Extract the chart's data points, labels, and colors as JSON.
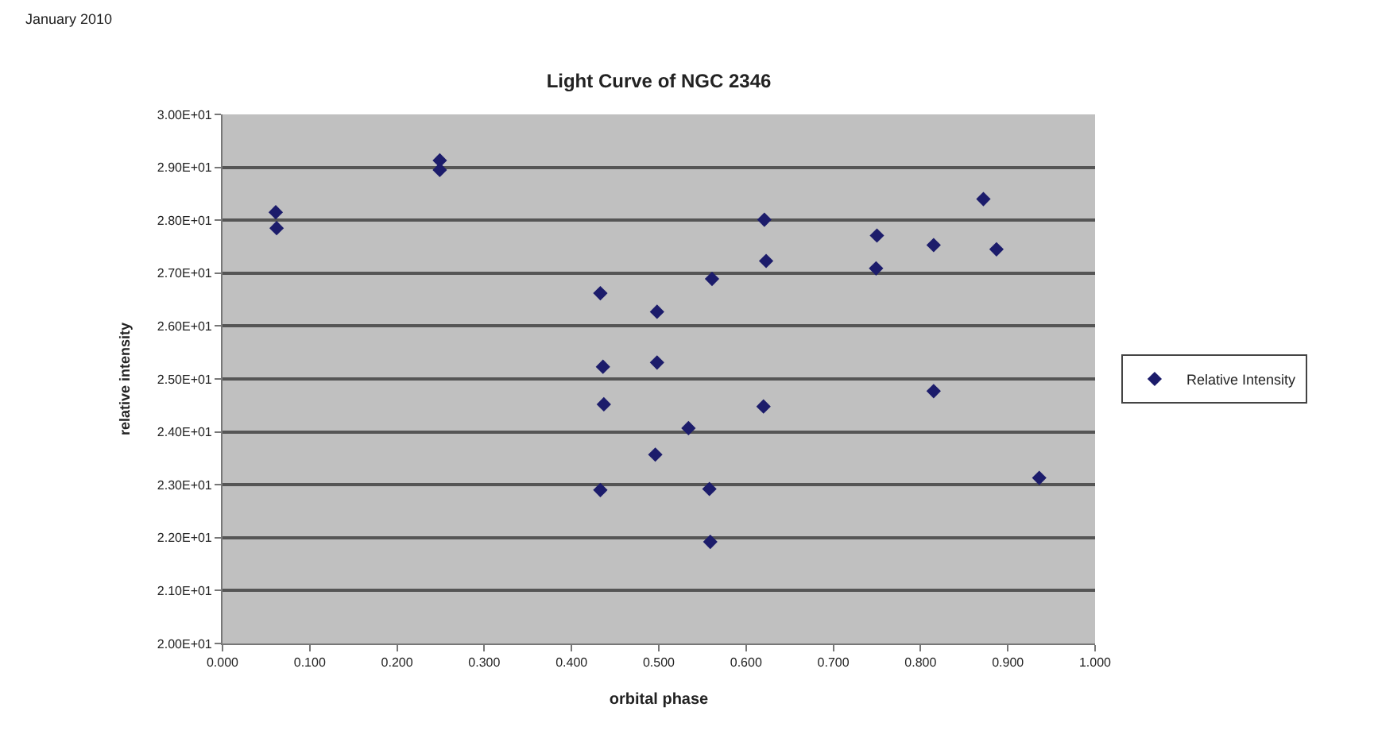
{
  "chart_data": {
    "type": "scatter",
    "title": "Light Curve of NGC 2346",
    "xlabel": "orbital phase",
    "ylabel": "relative intensity",
    "annotations": [
      "January 2010"
    ],
    "x": [
      0.061,
      0.062,
      0.249,
      0.249,
      0.433,
      0.498,
      0.436,
      0.498,
      0.437,
      0.496,
      0.433,
      0.621,
      0.872,
      0.75,
      0.815,
      0.887,
      0.623,
      0.749,
      0.561,
      0.815,
      0.62,
      0.534,
      0.936,
      0.558,
      0.559
    ],
    "series": [
      {
        "name": "Relative Intensity",
        "color": "#1c1c6b",
        "values": [
          28.15,
          27.85,
          29.13,
          28.95,
          26.62,
          26.27,
          25.23,
          25.31,
          24.52,
          23.57,
          22.9,
          28.01,
          28.4,
          27.71,
          27.53,
          27.45,
          27.23,
          27.09,
          26.89,
          24.77,
          24.48,
          24.07,
          23.13,
          22.92,
          21.92
        ]
      }
    ],
    "xlim": [
      0,
      1
    ],
    "xticks": [
      {
        "value": 0,
        "label": "0.000"
      },
      {
        "value": 0.1,
        "label": "0.100"
      },
      {
        "value": 0.2,
        "label": "0.200"
      },
      {
        "value": 0.3,
        "label": "0.300"
      },
      {
        "value": 0.4,
        "label": "0.400"
      },
      {
        "value": 0.5,
        "label": "0.500"
      },
      {
        "value": 0.6,
        "label": "0.600"
      },
      {
        "value": 0.7,
        "label": "0.700"
      },
      {
        "value": 0.8,
        "label": "0.800"
      },
      {
        "value": 0.9,
        "label": "0.900"
      },
      {
        "value": 1,
        "label": "1.000"
      }
    ],
    "ylim": [
      20,
      30
    ],
    "yticks": [
      {
        "value": 20,
        "label": "2.00E+01"
      },
      {
        "value": 21,
        "label": "2.10E+01"
      },
      {
        "value": 22,
        "label": "2.20E+01"
      },
      {
        "value": 23,
        "label": "2.30E+01"
      },
      {
        "value": 24,
        "label": "2.40E+01"
      },
      {
        "value": 25,
        "label": "2.50E+01"
      },
      {
        "value": 26,
        "label": "2.60E+01"
      },
      {
        "value": 27,
        "label": "2.70E+01"
      },
      {
        "value": 28,
        "label": "2.80E+01"
      },
      {
        "value": 29,
        "label": "2.90E+01"
      },
      {
        "value": 30,
        "label": "3.00E+01"
      }
    ],
    "grid": "y",
    "legend": "right",
    "marker": "diamond"
  }
}
